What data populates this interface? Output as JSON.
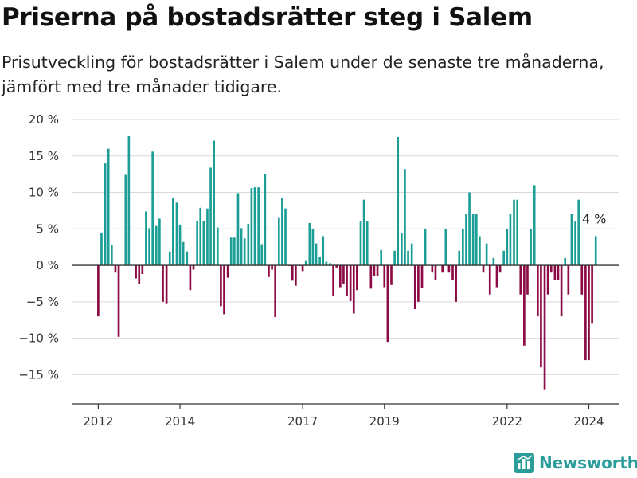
{
  "header": {
    "title": "Priserna på bostadsrätter steg i Salem",
    "subtitle": "Prisutveckling för bostadsrätter i Salem under de senaste tre månaderna, jämfört med tre månader tidigare."
  },
  "brand": {
    "name": "Newsworthy"
  },
  "colors": {
    "positive": "#1a9e96",
    "negative": "#8c0a45",
    "grid": "#d9d9d9",
    "axis": "#333333",
    "brand": "#2a9d9b"
  },
  "chart_data": {
    "type": "bar",
    "title": "Priserna på bostadsrätter steg i Salem",
    "subtitle": "Prisutveckling för bostadsrätter i Salem under de senaste tre månaderna, jämfört med tre månader tidigare.",
    "xlabel": "",
    "ylabel": "",
    "ylim": [
      -19,
      20
    ],
    "xlim": [
      2011.35,
      2024.75
    ],
    "yticks": [
      {
        "value": 20,
        "label": "20 %"
      },
      {
        "value": 15,
        "label": "15 %"
      },
      {
        "value": 10,
        "label": "10 %"
      },
      {
        "value": 5,
        "label": "5 %"
      },
      {
        "value": 0,
        "label": "0 %"
      },
      {
        "value": -5,
        "label": "−5 %"
      },
      {
        "value": -10,
        "label": "−10 %"
      },
      {
        "value": -15,
        "label": "−15 %"
      }
    ],
    "xticks": [
      {
        "value": 2012,
        "label": "2012"
      },
      {
        "value": 2014,
        "label": "2014"
      },
      {
        "value": 2017,
        "label": "2017"
      },
      {
        "value": 2019,
        "label": "2019"
      },
      {
        "value": 2022,
        "label": "2022"
      },
      {
        "value": 2024,
        "label": "2024"
      }
    ],
    "grid": true,
    "annotation": {
      "label": "4 %",
      "x": 2024.17,
      "y": 4
    },
    "x": [
      2012.0,
      2012.08,
      2012.17,
      2012.25,
      2012.33,
      2012.42,
      2012.5,
      2012.58,
      2012.67,
      2012.75,
      2012.83,
      2012.92,
      2013.0,
      2013.08,
      2013.17,
      2013.25,
      2013.33,
      2013.42,
      2013.5,
      2013.58,
      2013.67,
      2013.75,
      2013.83,
      2013.92,
      2014.0,
      2014.08,
      2014.17,
      2014.25,
      2014.33,
      2014.42,
      2014.5,
      2014.58,
      2014.67,
      2014.75,
      2014.83,
      2014.92,
      2015.0,
      2015.08,
      2015.17,
      2015.25,
      2015.33,
      2015.42,
      2015.5,
      2015.58,
      2015.67,
      2015.75,
      2015.83,
      2015.92,
      2016.0,
      2016.08,
      2016.17,
      2016.25,
      2016.33,
      2016.42,
      2016.5,
      2016.58,
      2016.67,
      2016.75,
      2016.83,
      2016.92,
      2017.0,
      2017.08,
      2017.17,
      2017.25,
      2017.33,
      2017.42,
      2017.5,
      2017.58,
      2017.67,
      2017.75,
      2017.83,
      2017.92,
      2018.0,
      2018.08,
      2018.17,
      2018.25,
      2018.33,
      2018.42,
      2018.5,
      2018.58,
      2018.67,
      2018.75,
      2018.83,
      2018.92,
      2019.0,
      2019.08,
      2019.17,
      2019.25,
      2019.33,
      2019.42,
      2019.5,
      2019.58,
      2019.67,
      2019.75,
      2019.83,
      2019.92,
      2020.0,
      2020.08,
      2020.17,
      2020.25,
      2020.33,
      2020.42,
      2020.5,
      2020.58,
      2020.67,
      2020.75,
      2020.83,
      2020.92,
      2021.0,
      2021.08,
      2021.17,
      2021.25,
      2021.33,
      2021.42,
      2021.5,
      2021.58,
      2021.67,
      2021.75,
      2021.83,
      2021.92,
      2022.0,
      2022.08,
      2022.17,
      2022.25,
      2022.33,
      2022.42,
      2022.5,
      2022.58,
      2022.67,
      2022.75,
      2022.83,
      2022.92,
      2023.0,
      2023.08,
      2023.17,
      2023.25,
      2023.33,
      2023.42,
      2023.5,
      2023.58,
      2023.67,
      2023.75,
      2023.83,
      2023.92,
      2024.0,
      2024.08,
      2024.17
    ],
    "values": [
      -7,
      4.5,
      14,
      16,
      2.8,
      -1,
      -9.8,
      0,
      12.4,
      17.7,
      0,
      -1.8,
      -2.6,
      -1.2,
      7.4,
      5.1,
      15.6,
      5.4,
      6.4,
      -5,
      -5.2,
      1.9,
      9.3,
      8.6,
      5.6,
      3.2,
      1.9,
      -3.4,
      -0.6,
      6.1,
      7.9,
      6.1,
      7.8,
      13.4,
      17.1,
      5.2,
      -5.6,
      -6.7,
      -1.7,
      3.8,
      3.8,
      9.9,
      5.1,
      3.7,
      5.7,
      10.6,
      10.7,
      10.7,
      2.9,
      12.5,
      -1.6,
      -0.6,
      -7.1,
      6.5,
      9.2,
      7.8,
      -0.1,
      -2.1,
      -2.8,
      -0.1,
      -0.8,
      0.7,
      5.8,
      5.0,
      3.0,
      1.1,
      4.0,
      0.5,
      0.3,
      -4.2,
      -0.3,
      -3.0,
      -2.5,
      -4.2,
      -4.9,
      -6.6,
      -3.4,
      6.1,
      9.0,
      6.1,
      -3.2,
      -1.5,
      -1.5,
      2.1,
      -3.0,
      -10.5,
      -2.7,
      2.0,
      17.6,
      4.4,
      13.2,
      2.0,
      3.0,
      -6.0,
      -5.0,
      -3.1,
      5.0,
      0.0,
      -1.0,
      -2.0,
      0.0,
      -1.0,
      5.0,
      -1.0,
      -2.0,
      -5.0,
      2.0,
      5.0,
      7.0,
      10.0,
      7.0,
      7.0,
      4.0,
      -1.0,
      3.0,
      -4.0,
      1.0,
      -3.0,
      -1.0,
      2.0,
      5.0,
      7.0,
      9.0,
      9.0,
      -4.0,
      -11.0,
      -4.0,
      5.0,
      11.0,
      -7.0,
      -14.0,
      -17.0,
      -4.0,
      -1.0,
      -2.0,
      -2.0,
      -7.0,
      1.0,
      -4.0,
      7.0,
      6.0,
      9.0,
      -4.0,
      -13.0,
      -13.0,
      -8.0,
      4.0
    ]
  }
}
